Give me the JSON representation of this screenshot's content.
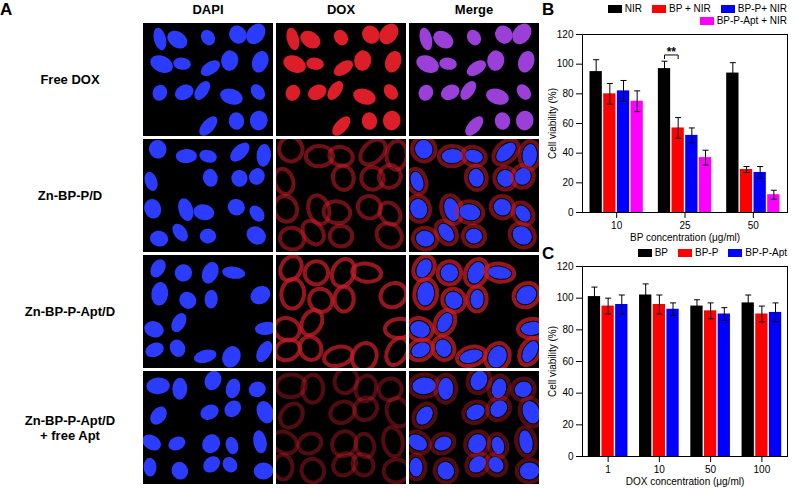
{
  "panel_a": {
    "label": "A",
    "columns": [
      "DAPI",
      "DOX",
      "Merge"
    ],
    "rows": [
      [
        "Free DOX"
      ],
      [
        "Zn-BP-P/D"
      ],
      [
        "Zn-BP-P-Apt/D"
      ],
      [
        "Zn-BP-P-Apt/D",
        "+ free Apt"
      ]
    ]
  },
  "chart_data": [
    {
      "type": "bar",
      "title": "B",
      "x_label": "BP concentration (μg/ml)",
      "y_label": "Cell viability (%)",
      "categories": [
        "10",
        "25",
        "50"
      ],
      "series": [
        {
          "name": "NIR",
          "color": "#000000",
          "values": [
            95,
            97,
            94
          ],
          "errors": [
            8,
            5,
            7
          ]
        },
        {
          "name": "BP + NIR",
          "color": "#ff0000",
          "values": [
            80,
            57,
            29
          ],
          "errors": [
            7,
            7,
            2
          ]
        },
        {
          "name": "BP-P+ NIR",
          "color": "#0000ff",
          "values": [
            82,
            52,
            27
          ],
          "errors": [
            7,
            5,
            4
          ]
        },
        {
          "name": "BP-P-Apt + NIR",
          "color": "#ff00ff",
          "values": [
            75,
            37,
            12
          ],
          "errors": [
            7,
            5,
            3
          ]
        }
      ],
      "ylim": [
        0,
        120
      ],
      "yticks": [
        0,
        20,
        40,
        60,
        80,
        100,
        120
      ],
      "legend": "top-right",
      "annotations": [
        {
          "text": "**",
          "category": "25",
          "series": [
            "NIR",
            "BP + NIR"
          ]
        }
      ]
    },
    {
      "type": "bar",
      "title": "C",
      "x_label": "DOX concentration (μg/ml)",
      "y_label": "Cell viability (%)",
      "categories": [
        "1",
        "10",
        "50",
        "100"
      ],
      "series": [
        {
          "name": "BP",
          "color": "#000000",
          "values": [
            101,
            102,
            95,
            97
          ],
          "errors": [
            6,
            7,
            4,
            5
          ]
        },
        {
          "name": "BP-P",
          "color": "#ff0000",
          "values": [
            95,
            96,
            92,
            90
          ],
          "errors": [
            5,
            6,
            5,
            5
          ]
        },
        {
          "name": "BP-P-Apt",
          "color": "#0000ff",
          "values": [
            96,
            93,
            90,
            91
          ],
          "errors": [
            6,
            4,
            4,
            6
          ]
        }
      ],
      "ylim": [
        0,
        120
      ],
      "yticks": [
        0,
        20,
        40,
        60,
        80,
        100,
        120
      ],
      "legend": "top-right"
    }
  ]
}
